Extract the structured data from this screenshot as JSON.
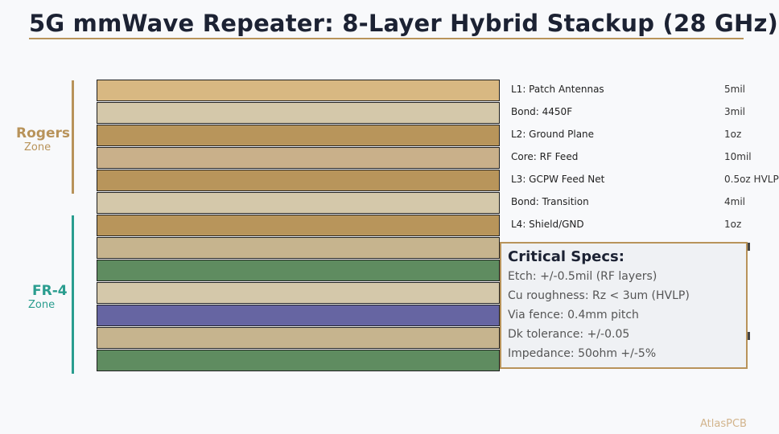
{
  "title": "5G mmWave Repeater: 8-Layer Hybrid Stackup (28 GHz)",
  "colors": {
    "accent": "#b8935a",
    "rogers": "#b8935a",
    "fr4": "#2a9d8f"
  },
  "zones": {
    "rogers": {
      "name": "Rogers",
      "sub": "Zone"
    },
    "fr4": {
      "name": "FR-4",
      "sub": "Zone"
    }
  },
  "layers": [
    {
      "label": "L1: Patch Antennas",
      "thickness": "5mil",
      "color": "#d8b882"
    },
    {
      "label": "Bond: 4450F",
      "thickness": "3mil",
      "color": "#d4c8aa"
    },
    {
      "label": "L2: Ground Plane",
      "thickness": "1oz",
      "color": "#b8955b"
    },
    {
      "label": "Core: RF Feed",
      "thickness": "10mil",
      "color": "#c9b08a"
    },
    {
      "label": "L3: GCPW Feed Net",
      "thickness": "0.5oz HVLP",
      "color": "#b8955b"
    },
    {
      "label": "Bond: Transition",
      "thickness": "4mil",
      "color": "#d4c8aa"
    },
    {
      "label": "L4: Shield/GND",
      "thickness": "1oz",
      "color": "#b8955b"
    },
    {
      "label": "",
      "thickness": "",
      "color": "#c6b48e"
    },
    {
      "label": "",
      "thickness": "",
      "color": "#5f8c60"
    },
    {
      "label": "",
      "thickness": "",
      "color": "#d4c8aa"
    },
    {
      "label": "",
      "thickness": "",
      "color": "#6665a2"
    },
    {
      "label": "",
      "thickness": "",
      "color": "#c6b48e"
    },
    {
      "label": "",
      "thickness": "",
      "color": "#5f8c60"
    }
  ],
  "specs": {
    "title": "Critical Specs:",
    "items": [
      "Etch: +/-0.5mil (RF layers)",
      "Cu roughness: Rz < 3um (HVLP)",
      "Via fence: 0.4mm pitch",
      "Dk tolerance: +/-0.05",
      "Impedance: 50ohm +/-5%"
    ]
  },
  "watermark": "AtlasPCB"
}
